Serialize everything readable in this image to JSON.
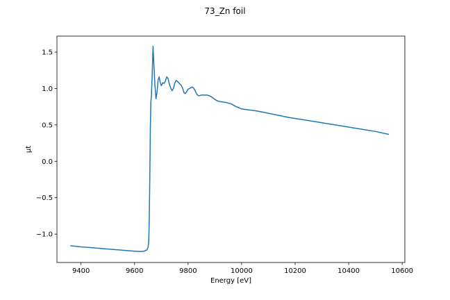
{
  "chart_data": {
    "type": "line",
    "title": "73_Zn foil",
    "xlabel": "Energy [eV]",
    "ylabel": "μt",
    "xlim": [
      9310,
      10610
    ],
    "ylim": [
      -1.39,
      1.72
    ],
    "xticks": [
      9400,
      9600,
      9800,
      10000,
      10200,
      10400,
      10600
    ],
    "xtick_labels": [
      "9400",
      "9600",
      "9800",
      "10000",
      "10200",
      "10400",
      "10600"
    ],
    "yticks": [
      -1.0,
      -0.5,
      0.0,
      0.5,
      1.0,
      1.5
    ],
    "ytick_labels": [
      "−1.0",
      "−0.5",
      "0.0",
      "0.5",
      "1.0",
      "1.5"
    ],
    "grid": false,
    "series": [
      {
        "color": "#1f77b4",
        "x": [
          9360,
          9400,
          9450,
          9500,
          9550,
          9600,
          9620,
          9635,
          9645,
          9650,
          9653,
          9655,
          9657,
          9659,
          9661,
          9663,
          9666,
          9669,
          9672,
          9676,
          9680,
          9684,
          9688,
          9692,
          9696,
          9700,
          9705,
          9710,
          9715,
          9720,
          9725,
          9730,
          9735,
          9740,
          9745,
          9750,
          9755,
          9760,
          9765,
          9770,
          9775,
          9780,
          9785,
          9790,
          9795,
          9800,
          9805,
          9810,
          9815,
          9820,
          9825,
          9830,
          9835,
          9840,
          9850,
          9860,
          9870,
          9880,
          9890,
          9900,
          9910,
          9920,
          9930,
          9940,
          9950,
          9960,
          9970,
          9980,
          9990,
          10000,
          10020,
          10040,
          10060,
          10080,
          10100,
          10120,
          10140,
          10160,
          10180,
          10200,
          10250,
          10300,
          10350,
          10400,
          10450,
          10500,
          10550
        ],
        "y": [
          -1.16,
          -1.175,
          -1.19,
          -1.205,
          -1.22,
          -1.235,
          -1.238,
          -1.235,
          -1.22,
          -1.19,
          -1.1,
          -0.8,
          -0.2,
          0.45,
          0.82,
          0.9,
          1.2,
          1.58,
          1.35,
          1.05,
          0.86,
          0.95,
          1.12,
          1.16,
          1.08,
          1.04,
          1.08,
          1.07,
          1.1,
          1.16,
          1.14,
          1.06,
          1.01,
          0.97,
          1.0,
          1.07,
          1.11,
          1.1,
          1.08,
          1.06,
          1.04,
          1.0,
          0.94,
          0.93,
          0.96,
          0.99,
          1.0,
          1.01,
          1.02,
          1.01,
          0.98,
          0.94,
          0.91,
          0.9,
          0.91,
          0.91,
          0.91,
          0.9,
          0.88,
          0.85,
          0.83,
          0.82,
          0.815,
          0.81,
          0.8,
          0.79,
          0.77,
          0.75,
          0.735,
          0.72,
          0.71,
          0.7,
          0.69,
          0.675,
          0.66,
          0.645,
          0.63,
          0.615,
          0.6,
          0.588,
          0.56,
          0.53,
          0.5,
          0.47,
          0.44,
          0.41,
          0.37
        ]
      }
    ]
  }
}
